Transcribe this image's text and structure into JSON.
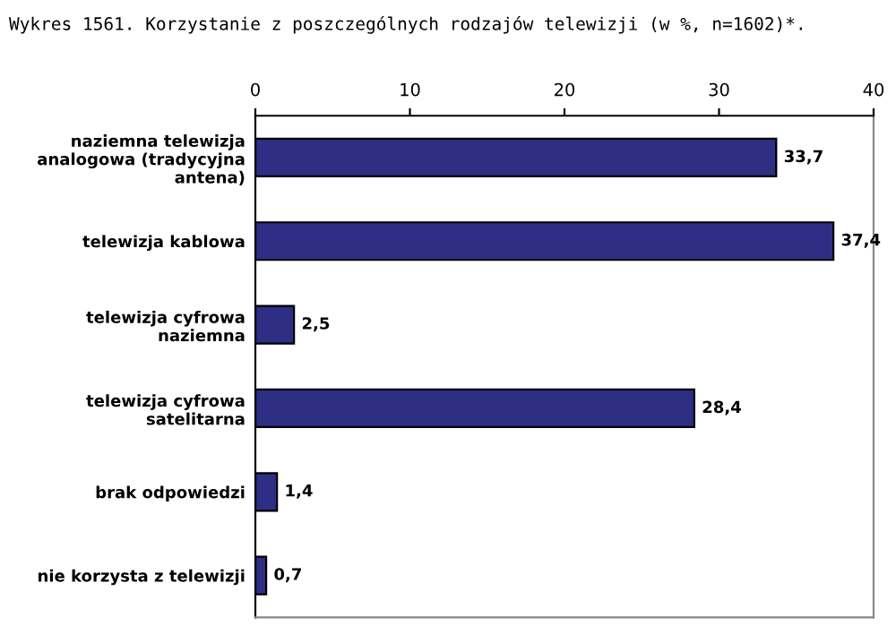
{
  "chart_data": {
    "type": "bar",
    "orientation": "horizontal",
    "title": "Wykres 1561. Korzystanie z poszczególnych rodzajów telewizji (w %, n=1602)*.",
    "categories": [
      "naziemna telewizja\nanalogowa (tradycyjna\nantena)",
      "telewizja kablowa",
      "telewizja cyfrowa\nnaziemna",
      "telewizja cyfrowa\nsatelitarna",
      "brak odpowiedzi",
      "nie korzysta z telewizji"
    ],
    "values": [
      33.7,
      37.4,
      2.5,
      28.4,
      1.4,
      0.7
    ],
    "value_labels": [
      "33,7",
      "37,4",
      "2,5",
      "28,4",
      "1,4",
      "0,7"
    ],
    "color": "#2e2e85",
    "xlim": [
      0,
      40
    ],
    "xticks": [
      0,
      10,
      20,
      30,
      40
    ],
    "grid": false,
    "legend": false
  }
}
